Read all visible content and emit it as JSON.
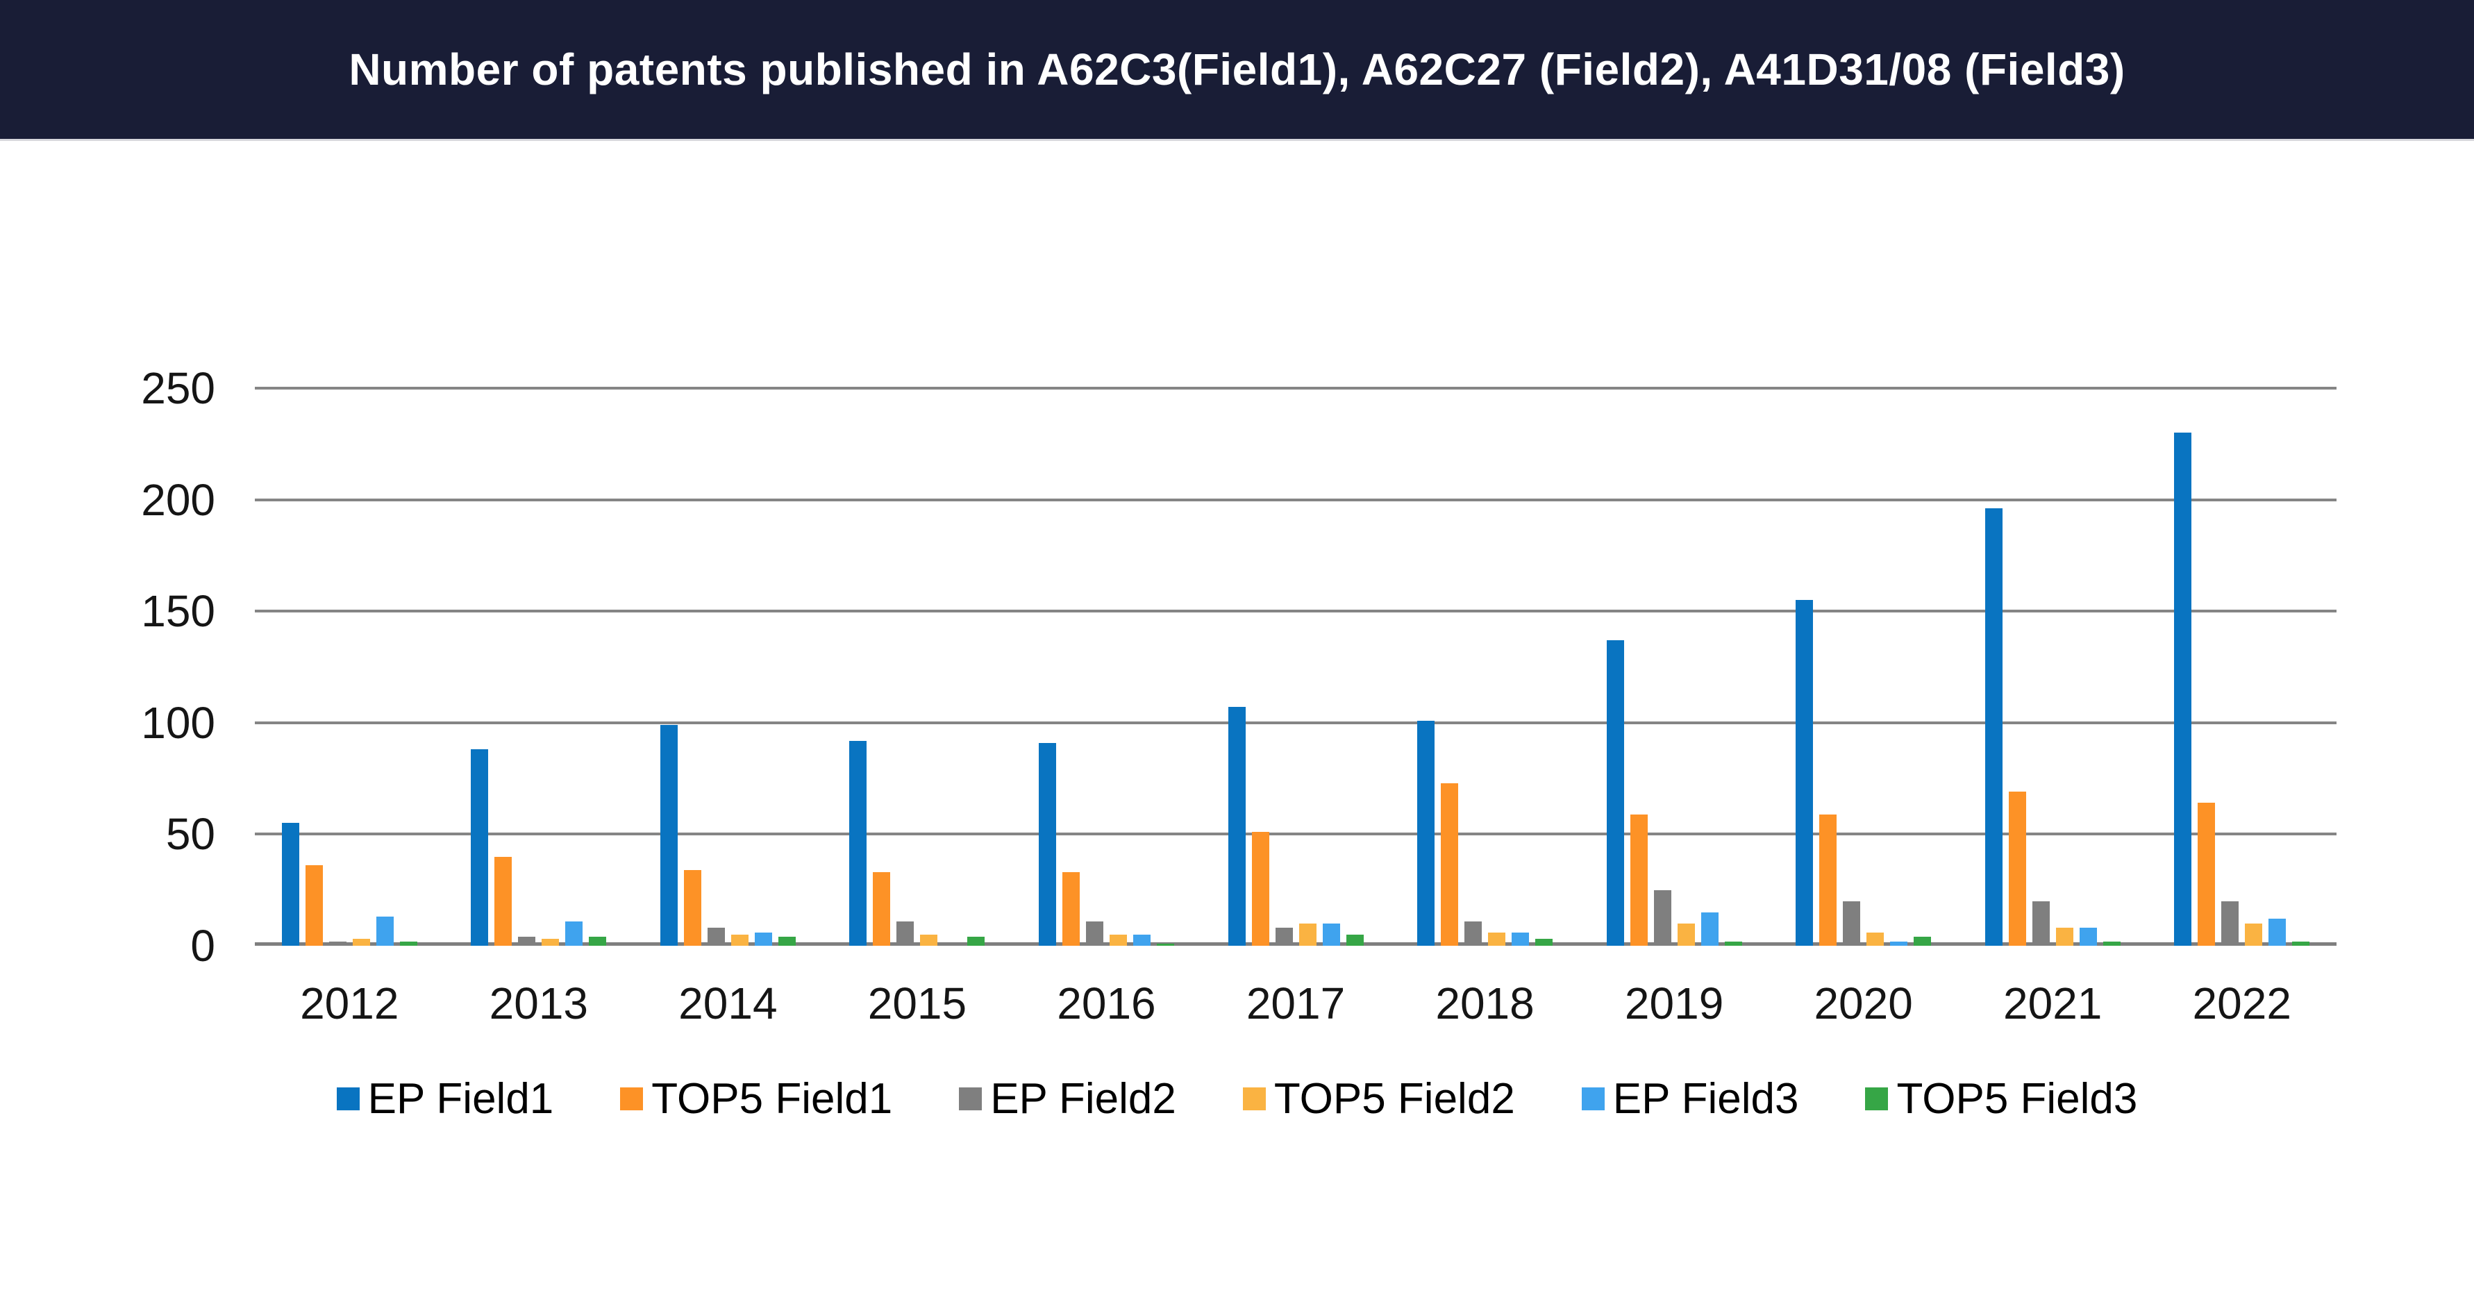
{
  "header": {
    "title": "Number of patents published in A62C3(Field1), A62C27 (Field2), A41D31/08 (Field3)",
    "background_color": "#191D36",
    "text_color": "#FFFFFF"
  },
  "chart_data": {
    "type": "bar",
    "title": "Number of patents published in A62C3(Field1), A62C27 (Field2), A41D31/08 (Field3)",
    "categories": [
      "2012",
      "2013",
      "2014",
      "2015",
      "2016",
      "2017",
      "2018",
      "2019",
      "2020",
      "2021",
      "2022"
    ],
    "series": [
      {
        "name": "EP Field1",
        "color": "#0974C1",
        "values": [
          55,
          88,
          99,
          92,
          91,
          107,
          101,
          137,
          155,
          196,
          230
        ]
      },
      {
        "name": "TOP5 Field1",
        "color": "#FD9226",
        "values": [
          36,
          40,
          34,
          33,
          33,
          51,
          73,
          59,
          59,
          69,
          64
        ]
      },
      {
        "name": "EP Field2",
        "color": "#7F7F7F",
        "values": [
          2,
          4,
          8,
          11,
          11,
          8,
          11,
          25,
          20,
          20,
          20
        ]
      },
      {
        "name": "TOP5 Field2",
        "color": "#FAB342",
        "values": [
          3,
          3,
          5,
          5,
          5,
          10,
          6,
          10,
          6,
          8,
          10
        ]
      },
      {
        "name": "EP Field3",
        "color": "#3FA3EE",
        "values": [
          13,
          11,
          6,
          0,
          5,
          10,
          6,
          15,
          2,
          8,
          12
        ]
      },
      {
        "name": "TOP5 Field3",
        "color": "#36A646",
        "values": [
          2,
          4,
          4,
          4,
          1,
          5,
          3,
          2,
          4,
          2,
          2
        ]
      }
    ],
    "xlabel": "",
    "ylabel": "",
    "ylim": [
      0,
      250
    ],
    "yticks": [
      0,
      50,
      100,
      150,
      200,
      250
    ],
    "grid": true,
    "gridline_color": "#858585",
    "zero_line_color": "#7F7F7F",
    "legend_position": "bottom"
  }
}
